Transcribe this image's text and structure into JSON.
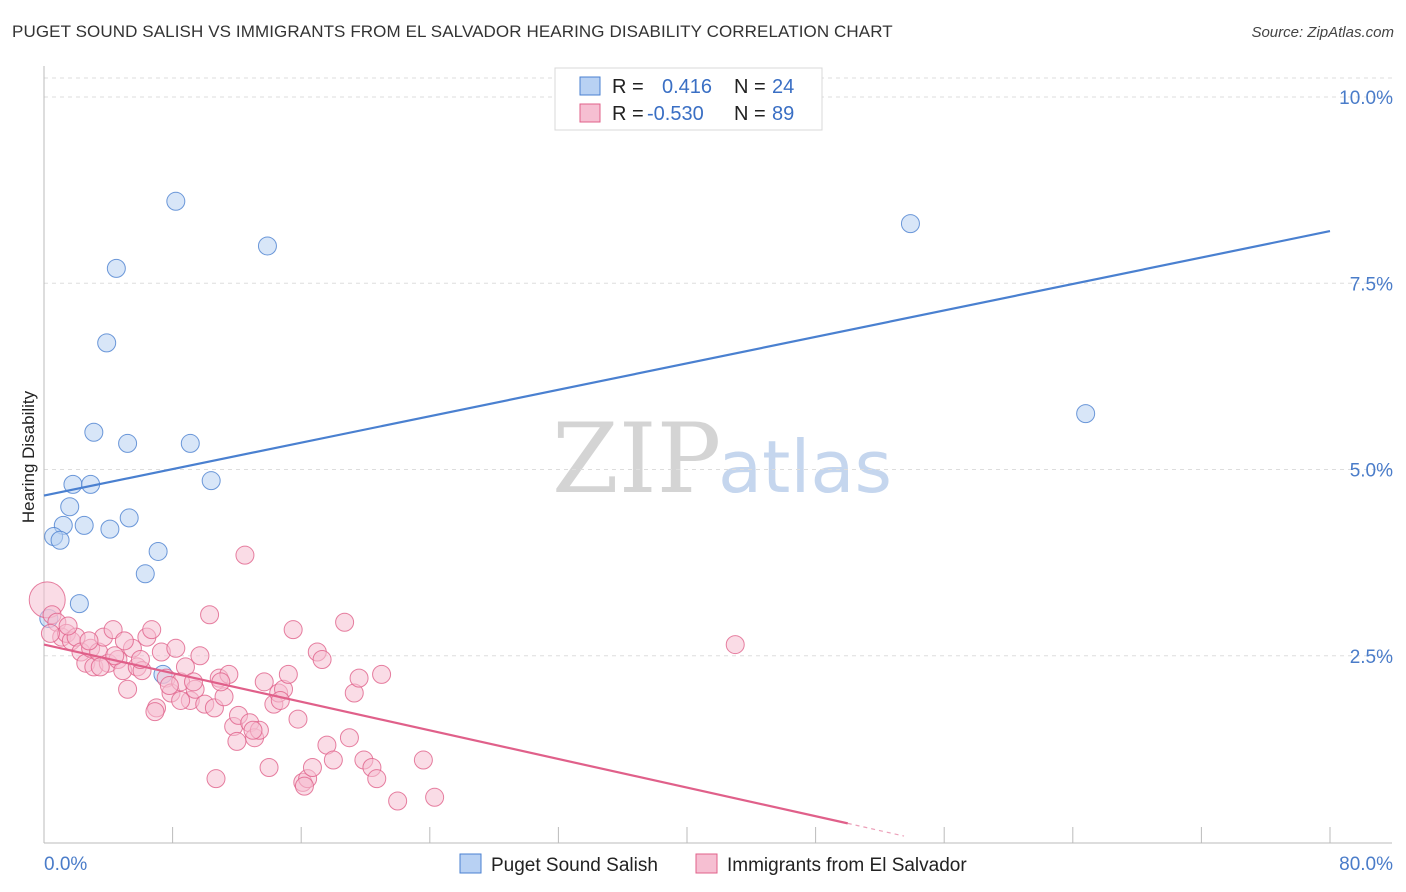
{
  "title": "PUGET SOUND SALISH VS IMMIGRANTS FROM EL SALVADOR HEARING DISABILITY CORRELATION CHART",
  "source": "Source: ZipAtlas.com",
  "watermark": {
    "zip": "ZIP",
    "atlas": "atlas"
  },
  "legend_top": {
    "rows": [
      {
        "r_label": "R = ",
        "r_value": "0.416",
        "n_label": "N = ",
        "n_value": "24"
      },
      {
        "r_label": "R = ",
        "r_value": "-0.530",
        "n_label": "N = ",
        "n_value": "89"
      }
    ]
  },
  "chart_data": {
    "type": "scatter",
    "title": "PUGET SOUND SALISH VS IMMIGRANTS FROM EL SALVADOR HEARING DISABILITY CORRELATION CHART",
    "xlabel": "",
    "ylabel": "Hearing Disability",
    "xlim": [
      0,
      80
    ],
    "ylim": [
      0,
      10.4
    ],
    "x_tick_labels": [
      "0.0%",
      "80.0%"
    ],
    "y_ticks": [
      2.5,
      5.0,
      7.5,
      10.0
    ],
    "y_tick_labels": [
      "2.5%",
      "5.0%",
      "7.5%",
      "10.0%"
    ],
    "grid": true,
    "legend_position": "bottom",
    "series": [
      {
        "name": "Puget Sound Salish",
        "color": "#4a80d0",
        "fill": "#b8d1f3",
        "r": 0.416,
        "n": 24,
        "trend": {
          "x": [
            0,
            80
          ],
          "y": [
            4.65,
            8.2
          ]
        },
        "points": [
          {
            "x": 8.2,
            "y": 8.6
          },
          {
            "x": 13.9,
            "y": 8.0
          },
          {
            "x": 4.5,
            "y": 7.7
          },
          {
            "x": 3.9,
            "y": 6.7
          },
          {
            "x": 3.1,
            "y": 5.5
          },
          {
            "x": 5.2,
            "y": 5.35
          },
          {
            "x": 9.1,
            "y": 5.35
          },
          {
            "x": 1.8,
            "y": 4.8
          },
          {
            "x": 2.9,
            "y": 4.8
          },
          {
            "x": 10.4,
            "y": 4.85
          },
          {
            "x": 1.6,
            "y": 4.5
          },
          {
            "x": 5.3,
            "y": 4.35
          },
          {
            "x": 1.2,
            "y": 4.25
          },
          {
            "x": 2.5,
            "y": 4.25
          },
          {
            "x": 4.1,
            "y": 4.2
          },
          {
            "x": 0.6,
            "y": 4.1
          },
          {
            "x": 1.0,
            "y": 4.05
          },
          {
            "x": 7.1,
            "y": 3.9
          },
          {
            "x": 6.3,
            "y": 3.6
          },
          {
            "x": 2.2,
            "y": 3.2
          },
          {
            "x": 0.3,
            "y": 3.0
          },
          {
            "x": 7.4,
            "y": 2.25
          },
          {
            "x": 53.9,
            "y": 8.3
          },
          {
            "x": 64.8,
            "y": 5.75
          }
        ]
      },
      {
        "name": "Immigrants from El Salvador",
        "color": "#e0608a",
        "fill": "#f6bfd2",
        "r": -0.53,
        "n": 89,
        "trend": {
          "x": [
            0,
            50
          ],
          "y": [
            2.65,
            0.25
          ]
        },
        "trend_dashed": {
          "x": [
            50,
            53.5
          ],
          "y": [
            0.25,
            0.08
          ]
        },
        "points": [
          {
            "x": 0.2,
            "y": 3.25
          },
          {
            "x": 0.5,
            "y": 3.05
          },
          {
            "x": 0.8,
            "y": 2.95
          },
          {
            "x": 1.1,
            "y": 2.75
          },
          {
            "x": 1.4,
            "y": 2.8
          },
          {
            "x": 1.7,
            "y": 2.7
          },
          {
            "x": 2.0,
            "y": 2.75
          },
          {
            "x": 2.3,
            "y": 2.55
          },
          {
            "x": 2.6,
            "y": 2.4
          },
          {
            "x": 2.9,
            "y": 2.6
          },
          {
            "x": 3.1,
            "y": 2.35
          },
          {
            "x": 3.4,
            "y": 2.55
          },
          {
            "x": 3.7,
            "y": 2.75
          },
          {
            "x": 4.0,
            "y": 2.4
          },
          {
            "x": 4.3,
            "y": 2.85
          },
          {
            "x": 4.6,
            "y": 2.45
          },
          {
            "x": 4.9,
            "y": 2.3
          },
          {
            "x": 5.2,
            "y": 2.05
          },
          {
            "x": 5.5,
            "y": 2.6
          },
          {
            "x": 5.8,
            "y": 2.35
          },
          {
            "x": 6.1,
            "y": 2.3
          },
          {
            "x": 6.4,
            "y": 2.75
          },
          {
            "x": 6.7,
            "y": 2.85
          },
          {
            "x": 7.0,
            "y": 1.8
          },
          {
            "x": 7.3,
            "y": 2.55
          },
          {
            "x": 7.6,
            "y": 2.2
          },
          {
            "x": 7.9,
            "y": 2.0
          },
          {
            "x": 8.2,
            "y": 2.6
          },
          {
            "x": 8.5,
            "y": 2.15
          },
          {
            "x": 8.8,
            "y": 2.35
          },
          {
            "x": 9.1,
            "y": 1.9
          },
          {
            "x": 9.4,
            "y": 2.05
          },
          {
            "x": 9.7,
            "y": 2.5
          },
          {
            "x": 10.0,
            "y": 1.85
          },
          {
            "x": 10.3,
            "y": 3.05
          },
          {
            "x": 10.6,
            "y": 1.8
          },
          {
            "x": 10.9,
            "y": 2.2
          },
          {
            "x": 11.2,
            "y": 1.95
          },
          {
            "x": 11.5,
            "y": 2.25
          },
          {
            "x": 11.8,
            "y": 1.55
          },
          {
            "x": 12.1,
            "y": 1.7
          },
          {
            "x": 12.5,
            "y": 3.85
          },
          {
            "x": 12.8,
            "y": 1.6
          },
          {
            "x": 13.1,
            "y": 1.4
          },
          {
            "x": 13.4,
            "y": 1.5
          },
          {
            "x": 13.7,
            "y": 2.15
          },
          {
            "x": 14.0,
            "y": 1.0
          },
          {
            "x": 14.3,
            "y": 1.85
          },
          {
            "x": 14.6,
            "y": 2.0
          },
          {
            "x": 14.9,
            "y": 2.05
          },
          {
            "x": 15.2,
            "y": 2.25
          },
          {
            "x": 15.5,
            "y": 2.85
          },
          {
            "x": 15.8,
            "y": 1.65
          },
          {
            "x": 16.1,
            "y": 0.8
          },
          {
            "x": 16.4,
            "y": 0.85
          },
          {
            "x": 16.7,
            "y": 1.0
          },
          {
            "x": 17.0,
            "y": 2.55
          },
          {
            "x": 17.3,
            "y": 2.45
          },
          {
            "x": 17.6,
            "y": 1.3
          },
          {
            "x": 18.7,
            "y": 2.95
          },
          {
            "x": 19.0,
            "y": 1.4
          },
          {
            "x": 19.3,
            "y": 2.0
          },
          {
            "x": 19.6,
            "y": 2.2
          },
          {
            "x": 19.9,
            "y": 1.1
          },
          {
            "x": 20.4,
            "y": 1.0
          },
          {
            "x": 20.7,
            "y": 0.85
          },
          {
            "x": 21.0,
            "y": 2.25
          },
          {
            "x": 22.0,
            "y": 0.55
          },
          {
            "x": 23.6,
            "y": 1.1
          },
          {
            "x": 24.3,
            "y": 0.6
          },
          {
            "x": 10.7,
            "y": 0.85
          },
          {
            "x": 6.9,
            "y": 1.75
          },
          {
            "x": 8.5,
            "y": 1.9
          },
          {
            "x": 12.0,
            "y": 1.35
          },
          {
            "x": 3.5,
            "y": 2.35
          },
          {
            "x": 5.0,
            "y": 2.7
          },
          {
            "x": 1.5,
            "y": 2.9
          },
          {
            "x": 2.8,
            "y": 2.7
          },
          {
            "x": 4.4,
            "y": 2.5
          },
          {
            "x": 6.0,
            "y": 2.45
          },
          {
            "x": 7.8,
            "y": 2.1
          },
          {
            "x": 9.3,
            "y": 2.15
          },
          {
            "x": 11.0,
            "y": 2.15
          },
          {
            "x": 13.0,
            "y": 1.5
          },
          {
            "x": 14.7,
            "y": 1.9
          },
          {
            "x": 16.2,
            "y": 0.75
          },
          {
            "x": 18.0,
            "y": 1.1
          },
          {
            "x": 43.0,
            "y": 2.65
          },
          {
            "x": 0.4,
            "y": 2.8
          }
        ]
      }
    ]
  }
}
